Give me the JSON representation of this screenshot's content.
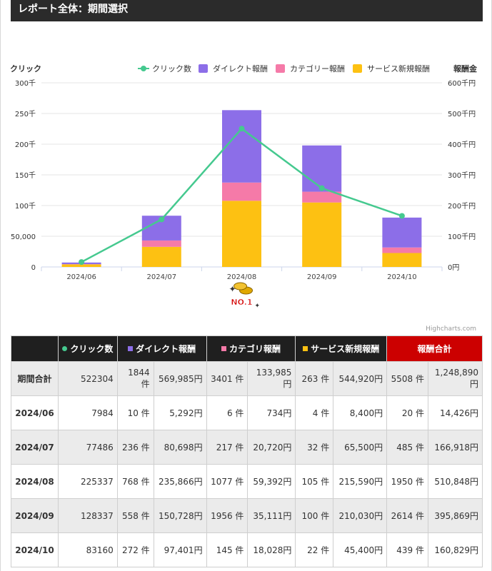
{
  "header": {
    "title": "レポート全体：期間選択"
  },
  "colors": {
    "clicks": "#45c98f",
    "direct": "#8c6ee8",
    "category": "#f57aa8",
    "service": "#fdc112"
  },
  "chart_data": {
    "type": "bar",
    "stacked": true,
    "categories": [
      "2024/06",
      "2024/07",
      "2024/08",
      "2024/09",
      "2024/10"
    ],
    "series": [
      {
        "name": "クリック数",
        "type": "line",
        "axis": "left",
        "values": [
          7984,
          77486,
          225337,
          128337,
          83160
        ]
      },
      {
        "name": "ダイレクト報酬",
        "type": "bar",
        "axis": "right",
        "values": [
          5292,
          80698,
          235866,
          150728,
          97401
        ]
      },
      {
        "name": "カテゴリー報酬",
        "type": "bar",
        "axis": "right",
        "values": [
          734,
          20720,
          59392,
          35111,
          18028
        ]
      },
      {
        "name": "サービス新規報酬",
        "type": "bar",
        "axis": "right",
        "values": [
          8400,
          65500,
          215590,
          210030,
          45400
        ]
      }
    ],
    "ylabel_left": "クリック",
    "ylabel_right": "報酬金",
    "ylim_left": [
      0,
      300000
    ],
    "ylim_right": [
      0,
      600000
    ],
    "yticks_left": [
      "0",
      "50,000",
      "100千",
      "150千",
      "200千",
      "250千",
      "300千"
    ],
    "yticks_right": [
      "0円",
      "100千円",
      "200千円",
      "300千円",
      "400千円",
      "500千円",
      "600千円"
    ],
    "legend": "top-right",
    "grid": true,
    "annotation": "NO.1",
    "credit": "Highcharts.com"
  },
  "table": {
    "headers": [
      "クリック数",
      "ダイレクト報酬",
      "カテゴリ報酬",
      "サービス新規報酬",
      "報酬合計"
    ],
    "rows": [
      {
        "label": "期間合計",
        "clicks": "522304",
        "direct_count": "1844 件",
        "direct_amount": "569,985円",
        "category_count": "3401 件",
        "category_amount": "133,985円",
        "service_count": "263 件",
        "service_amount": "544,920円",
        "total_count": "5508 件",
        "total_amount": "1,248,890円"
      },
      {
        "label": "2024/06",
        "clicks": "7984",
        "direct_count": "10 件",
        "direct_amount": "5,292円",
        "category_count": "6 件",
        "category_amount": "734円",
        "service_count": "4 件",
        "service_amount": "8,400円",
        "total_count": "20 件",
        "total_amount": "14,426円"
      },
      {
        "label": "2024/07",
        "clicks": "77486",
        "direct_count": "236 件",
        "direct_amount": "80,698円",
        "category_count": "217 件",
        "category_amount": "20,720円",
        "service_count": "32 件",
        "service_amount": "65,500円",
        "total_count": "485 件",
        "total_amount": "166,918円"
      },
      {
        "label": "2024/08",
        "clicks": "225337",
        "direct_count": "768 件",
        "direct_amount": "235,866円",
        "category_count": "1077 件",
        "category_amount": "59,392円",
        "service_count": "105 件",
        "service_amount": "215,590円",
        "total_count": "1950 件",
        "total_amount": "510,848円"
      },
      {
        "label": "2024/09",
        "clicks": "128337",
        "direct_count": "558 件",
        "direct_amount": "150,728円",
        "category_count": "1956 件",
        "category_amount": "35,111円",
        "service_count": "100 件",
        "service_amount": "210,030円",
        "total_count": "2614 件",
        "total_amount": "395,869円"
      },
      {
        "label": "2024/10",
        "clicks": "83160",
        "direct_count": "272 件",
        "direct_amount": "97,401円",
        "category_count": "145 件",
        "category_amount": "18,028円",
        "service_count": "22 件",
        "service_amount": "45,400円",
        "total_count": "439 件",
        "total_amount": "160,829円"
      }
    ]
  }
}
